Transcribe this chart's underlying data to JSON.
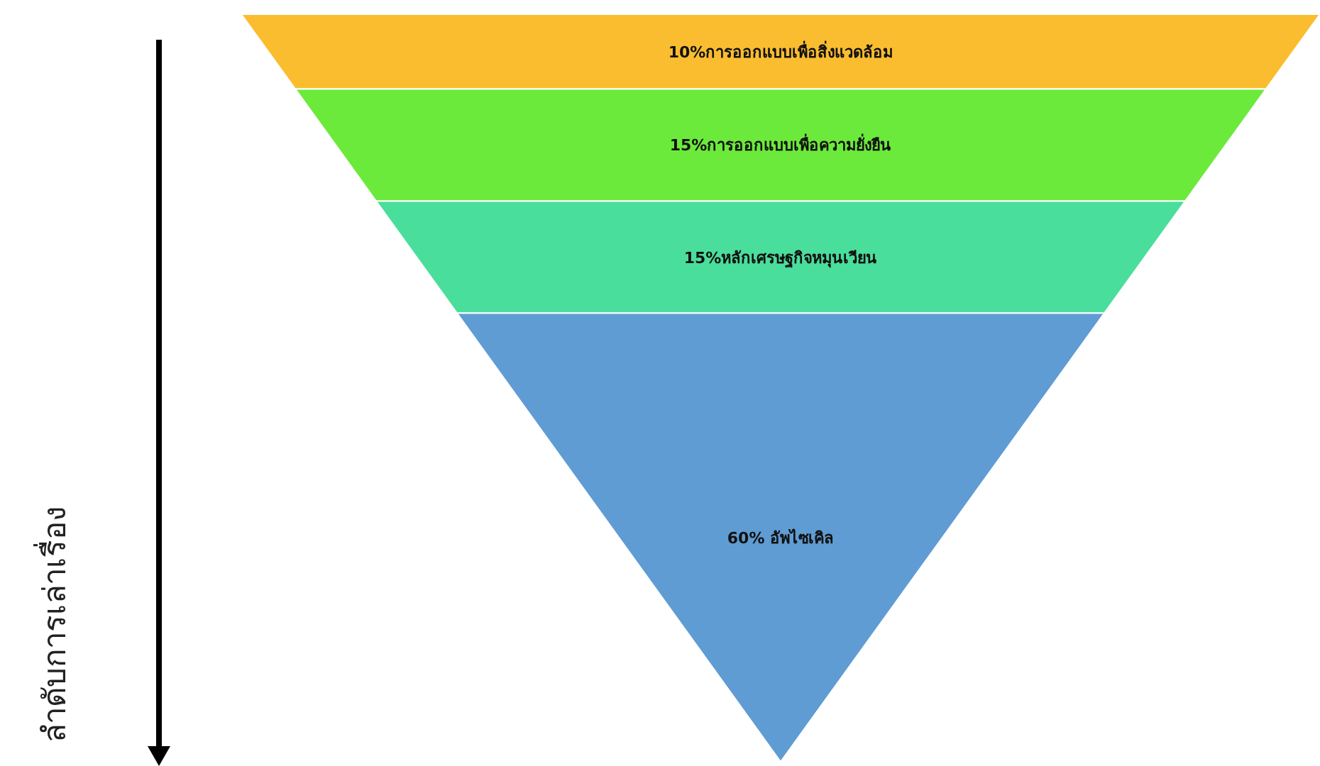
{
  "chart_data": {
    "type": "other",
    "ylabel": "ลำดับการเล่าเรื่อง",
    "categories": [
      "การออกแบบเพื่อสิ่งแวดล้อม",
      "การออกแบบเพื่อความยั่งยืน",
      "หลักเศรษฐกิจหมุนเวียน",
      " อัพไซเคิล"
    ],
    "values": [
      10,
      15,
      15,
      60
    ],
    "value_labels": [
      "10%",
      "15%",
      "15%",
      "60%"
    ],
    "colors": [
      "#fbbd30",
      "#6cea3b",
      "#4ade9c",
      "#5f9cd3"
    ]
  }
}
